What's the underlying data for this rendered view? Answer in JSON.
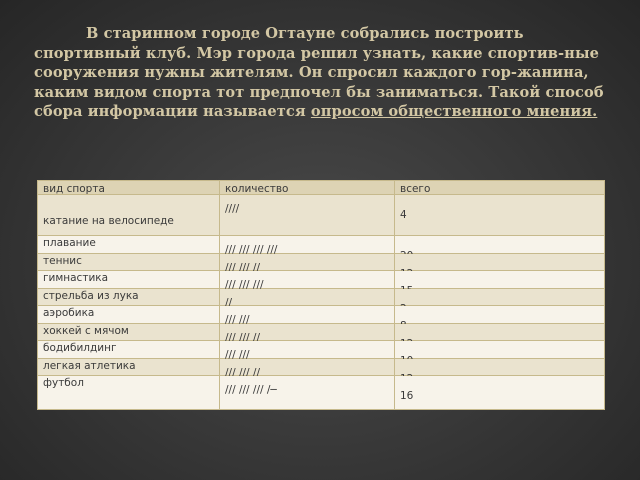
{
  "slide": {
    "paragraph_before": "В старинном городе Огтауне собрались построить спортивный клуб. Мэр города решил узнать, какие спортив-ные сооружения нужны жителям. Он спросил каждого гор-жанина, каким видом спорта тот предпочел бы заниматься. Такой способ сбора информации называется ",
    "underlined_term": "опросом  общественного мнения."
  },
  "table": {
    "headers": [
      "вид спорта",
      "количество",
      "всего"
    ],
    "rows": [
      {
        "sport": "катание на велосипеде",
        "tally": "////",
        "total": "4"
      },
      {
        "sport": "плавание",
        "tally": "/// /// /// ///",
        "total": "20"
      },
      {
        "sport": "теннис",
        "tally": "/// /// //",
        "total": "12"
      },
      {
        "sport": "гимнастика",
        "tally": "/// /// ///",
        "total": "15"
      },
      {
        "sport": "стрельба из лука",
        "tally": "//",
        "total": "2"
      },
      {
        "sport": "аэробика",
        "tally": "/// ///",
        "total": "8"
      },
      {
        "sport": "хоккей с мячом",
        "tally": "/// /// //",
        "total": "12"
      },
      {
        "sport": "бодибилдинг",
        "tally": "/// ///",
        "total": "10"
      },
      {
        "sport": "легкая атлетика",
        "tally": "/// /// //",
        "total": "12"
      },
      {
        "sport": "футбол",
        "tally": "/// /// /// /─",
        "total": "16"
      }
    ]
  }
}
